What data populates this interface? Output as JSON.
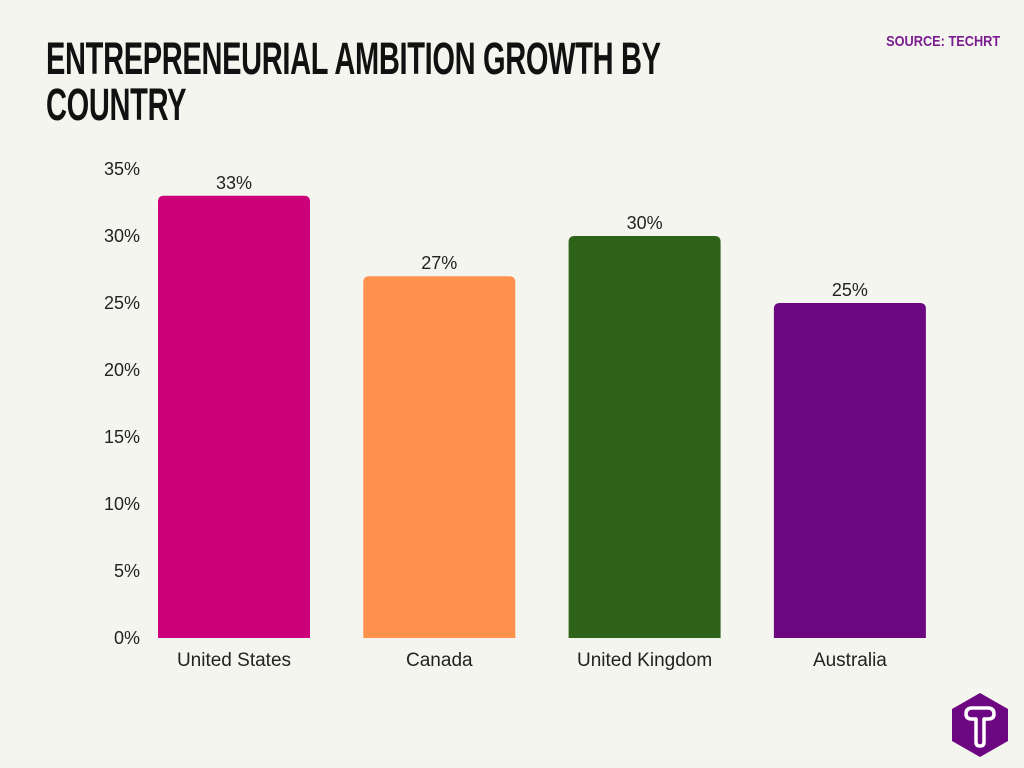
{
  "source_label": "SOURCE: TECHRT",
  "logo_icon": "techrt-hexagon-logo",
  "chart_data": {
    "type": "bar",
    "title": "ENTREPRENEURIAL AMBITION GROWTH BY COUNTRY",
    "xlabel": "",
    "ylabel": "",
    "categories": [
      "United States",
      "Canada",
      "United Kingdom",
      "Australia"
    ],
    "values": [
      33,
      27,
      30,
      25
    ],
    "data_labels": [
      "33%",
      "27%",
      "30%",
      "25%"
    ],
    "colors": [
      "#cc007a",
      "#ff914d",
      "#2e6319",
      "#6c0781"
    ],
    "ylim": [
      0,
      35
    ],
    "yticks": [
      "0%",
      "5%",
      "10%",
      "15%",
      "20%",
      "25%",
      "30%",
      "35%"
    ],
    "grid": false,
    "legend": "none"
  }
}
